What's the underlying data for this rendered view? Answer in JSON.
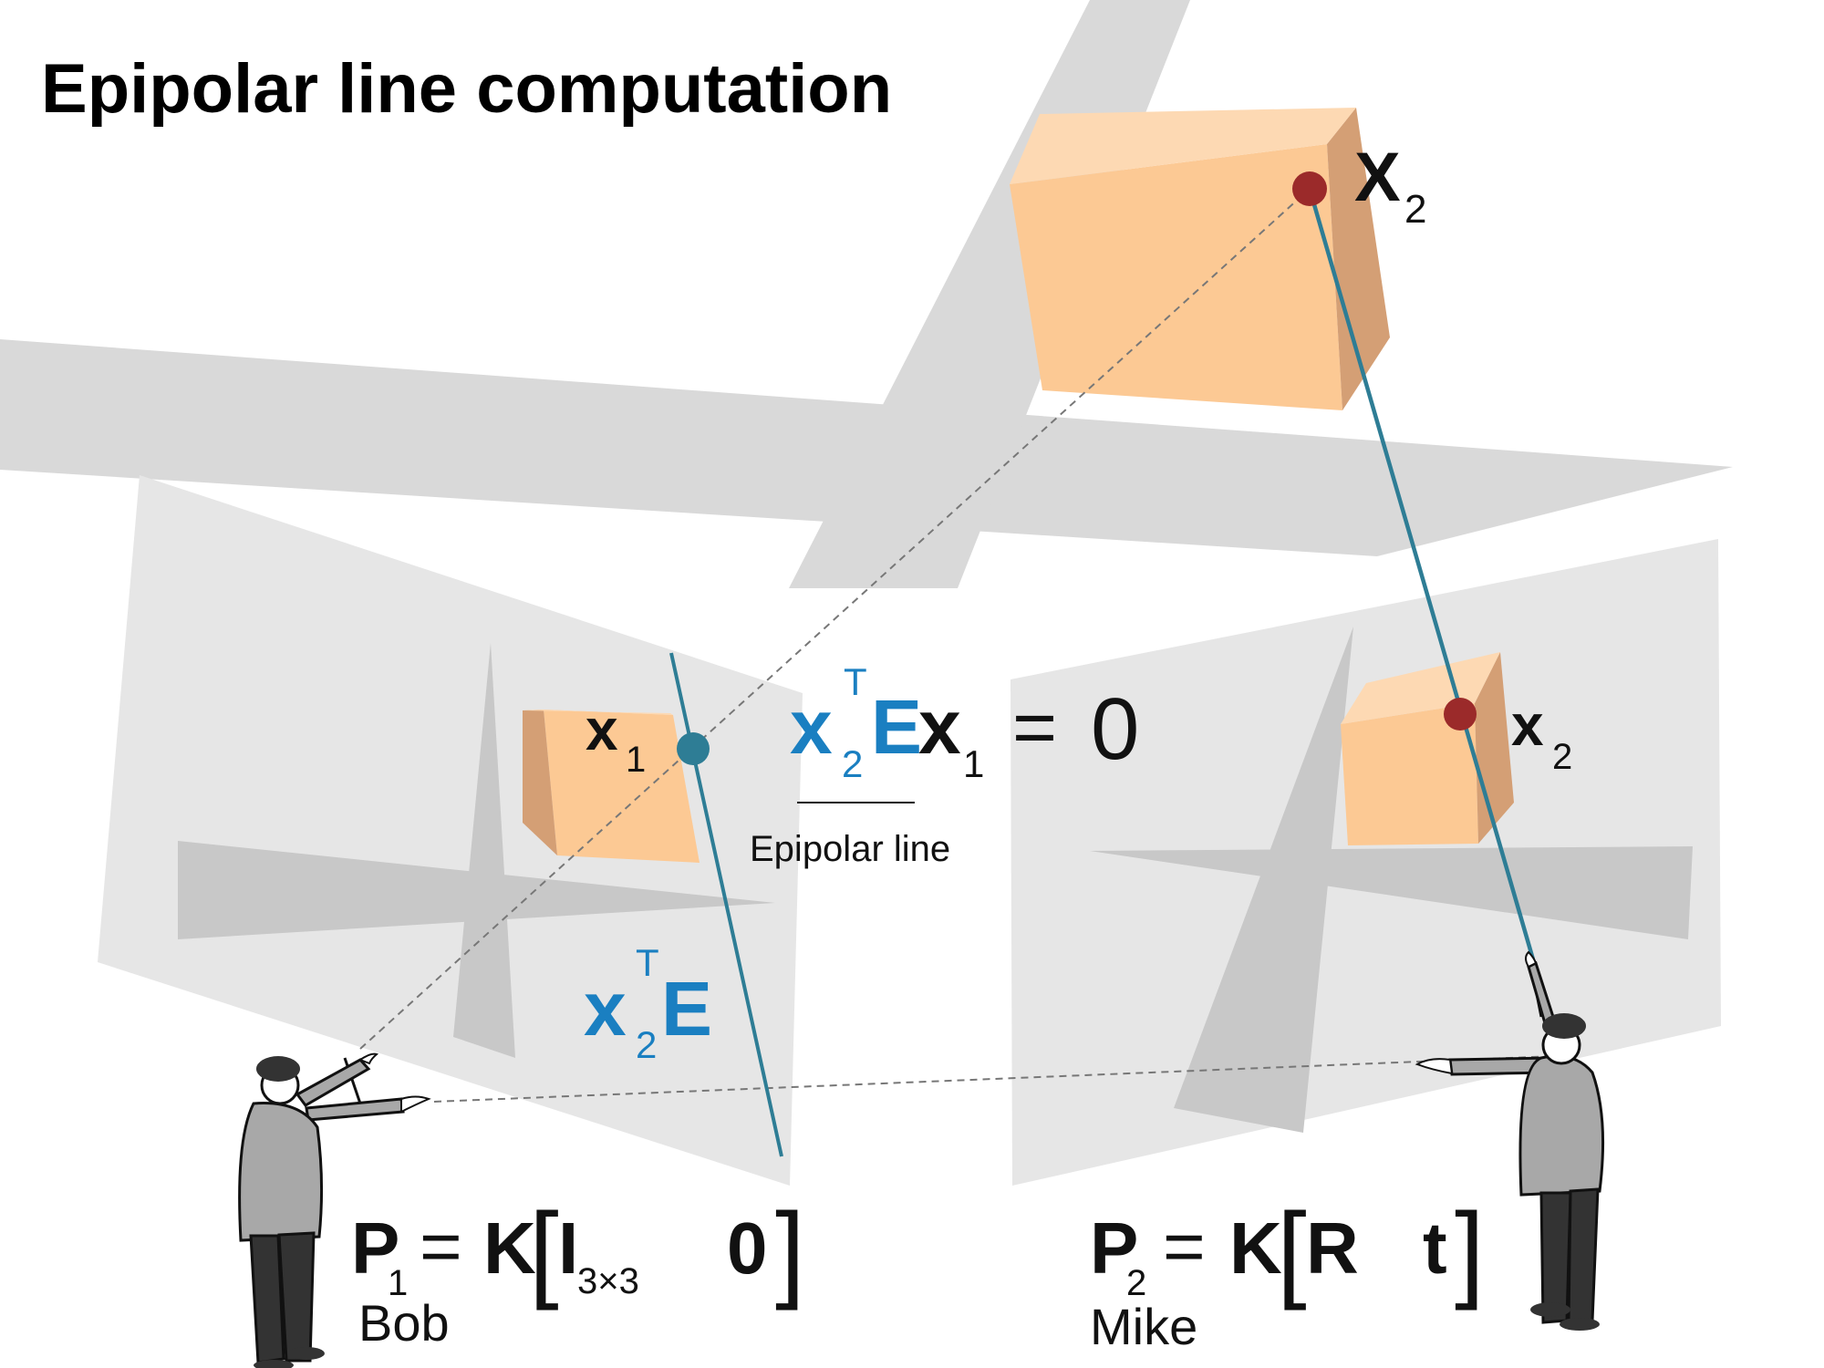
{
  "title": "Epipolar line computation",
  "colors": {
    "background": "#ffffff",
    "floor_shadow": "#d9d9d9",
    "image_plane": "#e6e6e6",
    "image_shadow": "#c4c4c4",
    "box_front": "#fcc994",
    "box_side": "#d49f75",
    "box_top": "#fdd9b3",
    "point_red": "#9b2a2a",
    "ray_teal": "#2e7d95",
    "accent_blue": "#1a7fc1",
    "text_dark": "#111111",
    "dashed": "#777777"
  },
  "world_point": {
    "symbol": "X",
    "subscript": "2"
  },
  "left_image": {
    "point_symbol": "x",
    "point_subscript": "1",
    "line_expr": {
      "x": "x",
      "sub": "2",
      "sup": "T",
      "matrix": "E"
    }
  },
  "right_image": {
    "point_symbol": "x",
    "point_subscript": "2"
  },
  "equation": {
    "x2": "x",
    "x2_sub": "2",
    "x2_sup": "T",
    "E": "E",
    "x1": "x",
    "x1_sub": "1",
    "equals": "=",
    "zero": "0",
    "caption": "Epipolar line"
  },
  "cameras": [
    {
      "person": "Bob",
      "P": "P",
      "P_sub": "1",
      "eq": "=",
      "K": "K",
      "left_bracket": "[",
      "R": "I",
      "R_sub": "3×3",
      "t": "0",
      "right_bracket": "]"
    },
    {
      "person": "Mike",
      "P": "P",
      "P_sub": "2",
      "eq": "=",
      "K": "K",
      "left_bracket": "[",
      "R": "R",
      "R_sub": "",
      "t": "t",
      "right_bracket": "]"
    }
  ]
}
